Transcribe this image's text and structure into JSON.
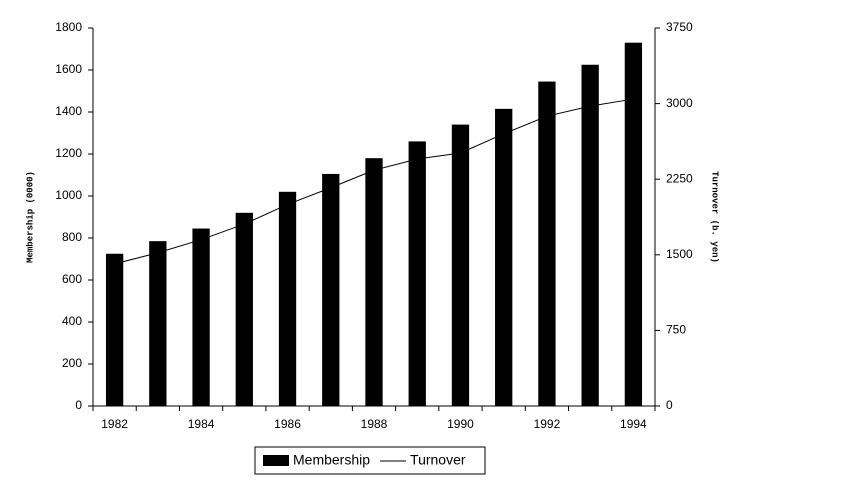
{
  "chart_data": {
    "type": "bar",
    "categories": [
      "1982",
      null,
      "1984",
      null,
      "1986",
      null,
      "1988",
      null,
      "1990",
      null,
      "1992",
      null,
      "1994"
    ],
    "series": [
      {
        "name": "Membership",
        "color": "#000000",
        "values": [
          725,
          785,
          845,
          920,
          1020,
          1105,
          1180,
          1260,
          1340,
          1415,
          1545,
          1625,
          1730
        ]
      },
      {
        "name": "Turnover",
        "color": "#000000",
        "type": "line",
        "axis": "y2",
        "values": [
          1410,
          1520,
          1650,
          1805,
          2000,
          2165,
          2340,
          2450,
          2510,
          2700,
          2875,
          2975,
          3045
        ]
      }
    ],
    "y_label": "Membership (0000)",
    "y2_label": "Turnover (b. yen)",
    "ylim": [
      0,
      1800
    ],
    "yticks": [
      0,
      200,
      400,
      600,
      800,
      1000,
      1200,
      1400,
      1600,
      1800
    ],
    "y2lim": [
      0,
      3750
    ],
    "y2ticks": [
      0,
      750,
      1500,
      2250,
      3000,
      3750
    ],
    "legend": "bottom",
    "grid": false
  }
}
